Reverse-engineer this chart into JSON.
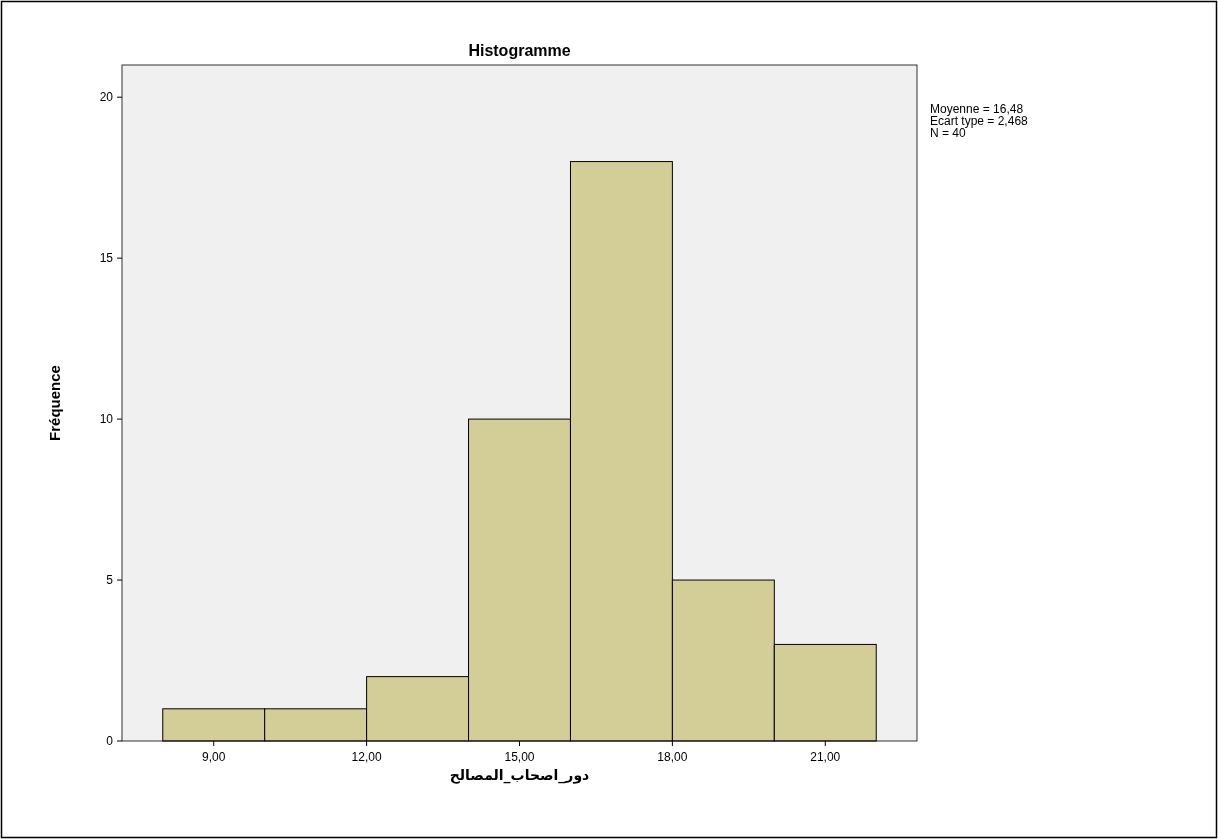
{
  "chart_data": {
    "type": "histogram",
    "title": "Histogramme",
    "xlabel": "دور_اصحاب_المصالح",
    "ylabel": "Fréquence",
    "bins": [
      8,
      10,
      12,
      14,
      16,
      18,
      20,
      22
    ],
    "values": [
      1,
      1,
      2,
      10,
      18,
      5,
      3
    ],
    "color": "#d3ce97",
    "xlim": [
      7.2,
      22.8
    ],
    "ylim": [
      0,
      21
    ],
    "xticks": [
      {
        "value": 9,
        "label": "9,00"
      },
      {
        "value": 12,
        "label": "12,00"
      },
      {
        "value": 15,
        "label": "15,00"
      },
      {
        "value": 18,
        "label": "18,00"
      },
      {
        "value": 21,
        "label": "21,00"
      }
    ],
    "yticks": [
      0,
      5,
      10,
      15,
      20
    ],
    "annotations": [
      "Moyenne = 16,48",
      "Ecart type = 2,468",
      "N = 40"
    ]
  }
}
